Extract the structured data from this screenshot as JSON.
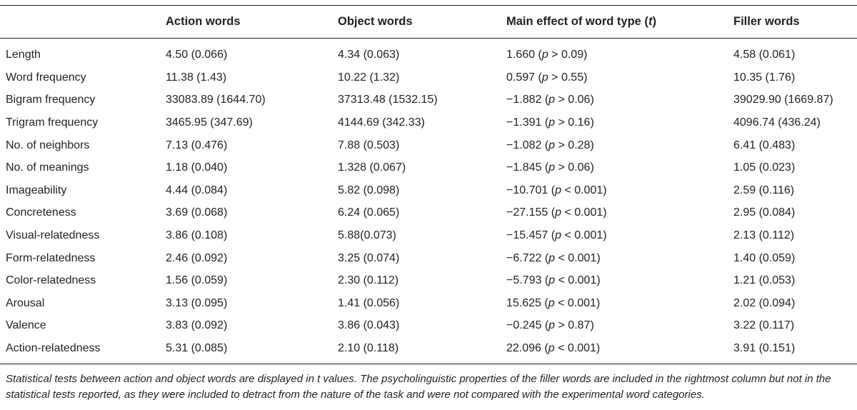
{
  "headers": {
    "col0": "",
    "col1": "Action words",
    "col2": "Object words",
    "col3_prefix": "Main effect of word type (",
    "col3_var": "t",
    "col3_suffix": ")",
    "col4": "Filler words"
  },
  "rows": [
    {
      "label": "Length",
      "action": "4.50 (0.066)",
      "object": "4.34 (0.063)",
      "effect_value": "1.660 (",
      "effect_p": "p",
      "effect_rest": " > 0.09)",
      "filler": "4.58 (0.061)"
    },
    {
      "label": "Word frequency",
      "action": "11.38 (1.43)",
      "object": "10.22 (1.32)",
      "effect_value": "0.597 (",
      "effect_p": "p",
      "effect_rest": " > 0.55)",
      "filler": "10.35 (1.76)"
    },
    {
      "label": "Bigram frequency",
      "action": "33083.89 (1644.70)",
      "object": "37313.48 (1532.15)",
      "effect_value": "−1.882 (",
      "effect_p": "p",
      "effect_rest": " > 0.06)",
      "filler": "39029.90 (1669.87)"
    },
    {
      "label": "Trigram frequency",
      "action": "3465.95 (347.69)",
      "object": "4144.69 (342.33)",
      "effect_value": "−1.391 (",
      "effect_p": "p",
      "effect_rest": " > 0.16)",
      "filler": "4096.74 (436.24)"
    },
    {
      "label": "No. of neighbors",
      "action": "7.13 (0.476)",
      "object": "7.88 (0.503)",
      "effect_value": "−1.082 (",
      "effect_p": "p",
      "effect_rest": " > 0.28)",
      "filler": "6.41 (0.483)"
    },
    {
      "label": "No. of meanings",
      "action": "1.18 (0.040)",
      "object": "1.328 (0.067)",
      "effect_value": "−1.845 (",
      "effect_p": "p",
      "effect_rest": " > 0.06)",
      "filler": "1.05 (0.023)"
    },
    {
      "label": "Imageability",
      "action": "4.44 (0.084)",
      "object": "5.82 (0.098)",
      "effect_value": "−10.701 (",
      "effect_p": "p",
      "effect_rest": " < 0.001)",
      "filler": "2.59 (0.116)"
    },
    {
      "label": "Concreteness",
      "action": "3.69 (0.068)",
      "object": "6.24 (0.065)",
      "effect_value": "−27.155 (",
      "effect_p": "p",
      "effect_rest": " < 0.001)",
      "filler": "2.95 (0.084)"
    },
    {
      "label": "Visual-relatedness",
      "action": "3.86 (0.108)",
      "object": "5.88(0.073)",
      "effect_value": "−15.457 (",
      "effect_p": "p",
      "effect_rest": " < 0.001)",
      "filler": "2.13 (0.112)"
    },
    {
      "label": "Form-relatedness",
      "action": "2.46 (0.092)",
      "object": "3.25 (0.074)",
      "effect_value": "−6.722 (",
      "effect_p": "p",
      "effect_rest": " < 0.001)",
      "filler": "1.40 (0.059)"
    },
    {
      "label": "Color-relatedness",
      "action": "1.56 (0.059)",
      "object": "2.30 (0.112)",
      "effect_value": "−5.793 (",
      "effect_p": "p",
      "effect_rest": " < 0.001)",
      "filler": "1.21 (0.053)"
    },
    {
      "label": "Arousal",
      "action": "3.13 (0.095)",
      "object": "1.41 (0.056)",
      "effect_value": "15.625 (",
      "effect_p": "p",
      "effect_rest": " < 0.001)",
      "filler": "2.02 (0.094)"
    },
    {
      "label": "Valence",
      "action": "3.83 (0.092)",
      "object": "3.86 (0.043)",
      "effect_value": "−0.245 (",
      "effect_p": "p",
      "effect_rest": " > 0.87)",
      "filler": "3.22 (0.117)"
    },
    {
      "label": "Action-relatedness",
      "action": "5.31 (0.085)",
      "object": "2.10 (0.118)",
      "effect_value": "22.096 (",
      "effect_p": "p",
      "effect_rest": " < 0.001)",
      "filler": "3.91 (0.151)"
    }
  ],
  "footnote": "Statistical tests between action and object words are displayed in t values. The psycholinguistic properties of the filler words are included in the rightmost column but not in the statistical tests reported, as they were included to detract from the nature of the task and were not compared with the experimental word categories."
}
